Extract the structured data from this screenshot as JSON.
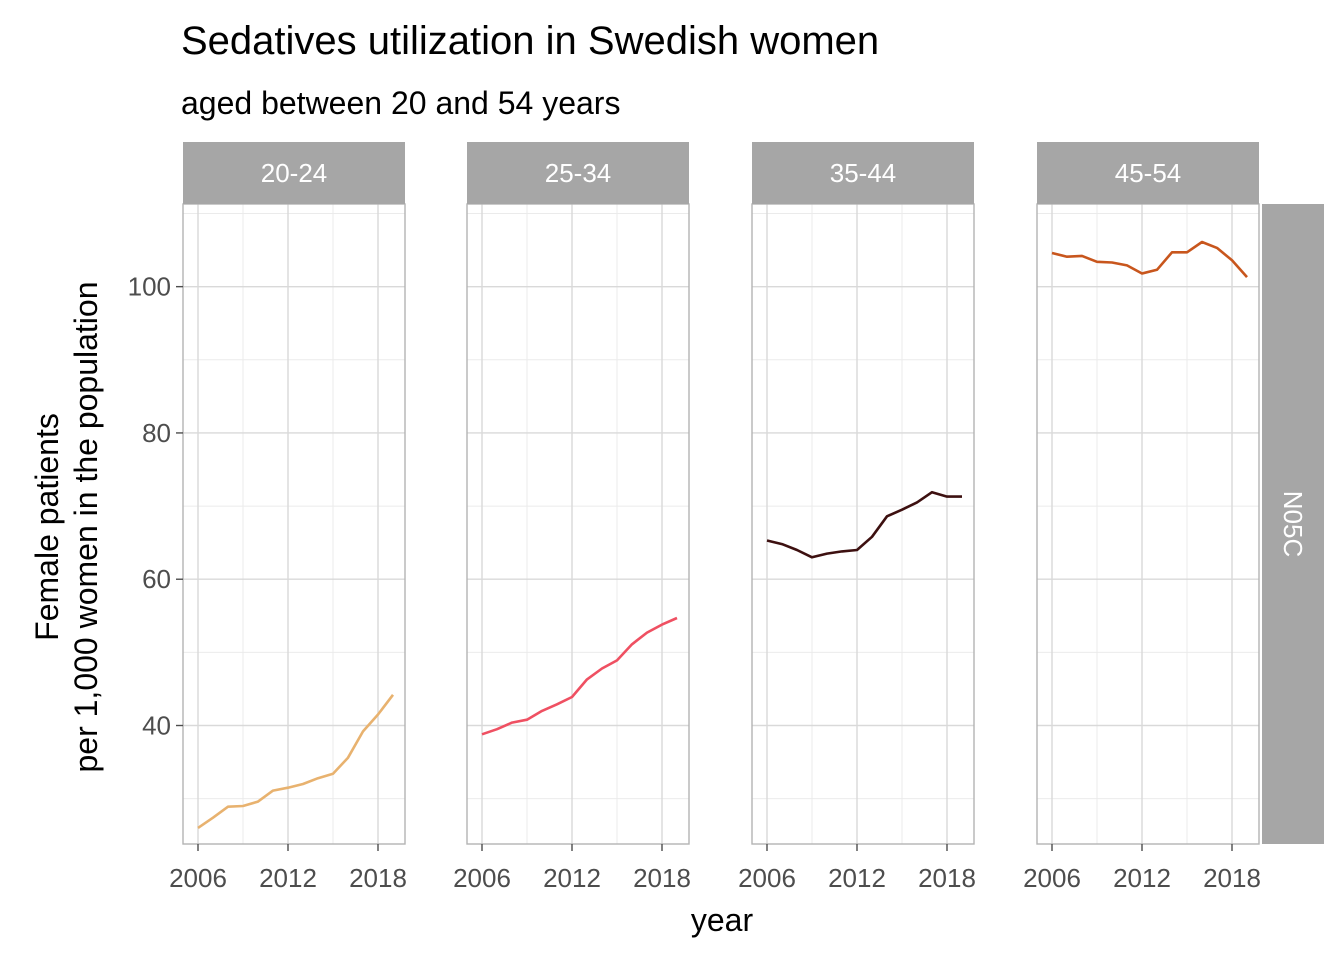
{
  "chart_data": {
    "type": "line",
    "title": "Sedatives utilization in Swedish women",
    "subtitle": "aged between 20 and 54 years",
    "xlabel": "year",
    "ylabel": [
      "Female patients",
      "per 1,000 women in the population"
    ],
    "row_strip": "N05C",
    "xlim": [
      2005,
      2019.8
    ],
    "ylim": [
      23.8,
      111.3
    ],
    "x_ticks": [
      2006,
      2012,
      2018
    ],
    "y_ticks": [
      40,
      60,
      80,
      100
    ],
    "grid": true,
    "x": [
      2006,
      2007,
      2008,
      2009,
      2010,
      2011,
      2012,
      2013,
      2014,
      2015,
      2016,
      2017,
      2018,
      2019
    ],
    "panels": [
      {
        "name": "20-24",
        "color": "#E8B26F",
        "values": [
          26.0,
          27.4,
          28.9,
          29.0,
          29.6,
          31.1,
          31.5,
          32.0,
          32.8,
          33.4,
          35.6,
          39.2,
          41.5,
          44.2
        ]
      },
      {
        "name": "25-34",
        "color": "#EF5062",
        "values": [
          38.8,
          39.5,
          40.4,
          40.8,
          42.0,
          42.9,
          43.9,
          46.3,
          47.8,
          48.9,
          51.1,
          52.7,
          53.8,
          54.7
        ]
      },
      {
        "name": "35-44",
        "color": "#3D1010",
        "values": [
          65.3,
          64.8,
          64.0,
          63.0,
          63.5,
          63.8,
          64.0,
          65.8,
          68.6,
          69.5,
          70.5,
          71.9,
          71.3,
          71.3
        ]
      },
      {
        "name": "45-54",
        "color": "#C8561D",
        "values": [
          104.6,
          104.1,
          104.2,
          103.4,
          103.3,
          102.9,
          101.8,
          102.3,
          104.7,
          104.7,
          106.1,
          105.3,
          103.6,
          101.3
        ]
      }
    ]
  }
}
